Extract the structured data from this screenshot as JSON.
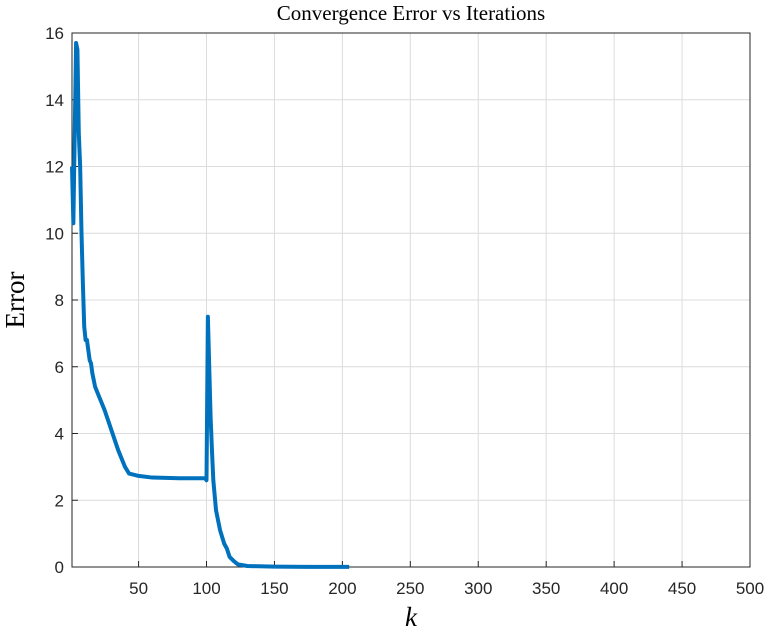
{
  "chart_data": {
    "type": "line",
    "title": "Convergence Error vs Iterations",
    "x_label": "k",
    "y_label": "Error",
    "series": [
      {
        "name": "Error",
        "color": "#0072bd",
        "x": [
          1,
          2,
          3,
          4,
          5,
          6,
          7,
          8,
          9,
          10,
          11,
          12,
          13,
          14,
          15,
          16,
          18,
          20,
          25,
          30,
          35,
          40,
          43,
          50,
          60,
          70,
          80,
          90,
          99,
          100,
          101,
          102,
          103,
          104,
          105,
          107,
          110,
          113,
          115,
          117,
          120,
          123,
          130,
          150,
          175,
          205
        ],
        "values": [
          12.0,
          10.3,
          13.0,
          15.7,
          15.5,
          13.0,
          12.0,
          10.0,
          8.5,
          7.2,
          6.8,
          6.8,
          6.5,
          6.2,
          6.1,
          5.8,
          5.4,
          5.2,
          4.7,
          4.1,
          3.5,
          3.0,
          2.8,
          2.73,
          2.68,
          2.67,
          2.66,
          2.66,
          2.66,
          2.6,
          7.5,
          6.0,
          4.5,
          3.5,
          2.6,
          1.7,
          1.1,
          0.7,
          0.55,
          0.3,
          0.18,
          0.08,
          0.03,
          0.01,
          0.005,
          0.003
        ]
      }
    ],
    "xlim": [
      1,
      500
    ],
    "xticks": [
      50,
      100,
      150,
      200,
      250,
      300,
      350,
      400,
      450,
      500
    ],
    "ylim": [
      0,
      16
    ],
    "yticks": [
      0,
      2,
      4,
      6,
      8,
      10,
      12,
      14,
      16
    ],
    "grid": true
  }
}
